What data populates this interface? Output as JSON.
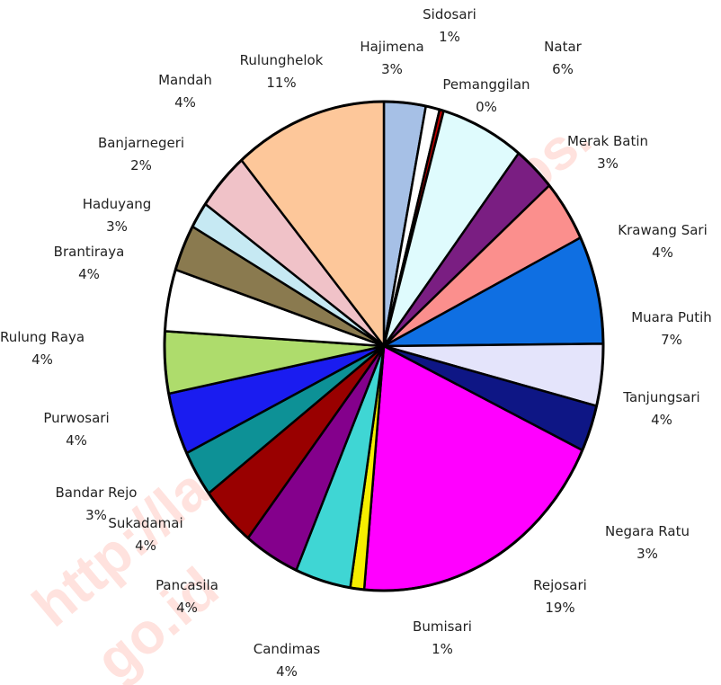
{
  "chart_data": {
    "type": "pie",
    "slices": [
      {
        "name": "Hajimena",
        "percent_label": "3%",
        "value": 3,
        "color": "#a6c0e6"
      },
      {
        "name": "Sidosari",
        "percent_label": "1%",
        "value": 1,
        "color": "#ffffff"
      },
      {
        "name": "Pemanggilan",
        "percent_label": "0%",
        "value": 0.3,
        "color": "#c00000"
      },
      {
        "name": "Natar",
        "percent_label": "6%",
        "value": 6,
        "color": "#dffbfd"
      },
      {
        "name": "Merak Batin",
        "percent_label": "3%",
        "value": 3,
        "color": "#7a1e82"
      },
      {
        "name": "Krawang Sari",
        "percent_label": "4%",
        "value": 4,
        "color": "#fb8f8d"
      },
      {
        "name": "Muara Putih",
        "percent_label": "7%",
        "value": 7,
        "color": "#0f6fe2"
      },
      {
        "name": "Tanjungsari",
        "percent_label": "4%",
        "value": 4,
        "color": "#e4e4fb"
      },
      {
        "name": "Negara Ratu",
        "percent_label": "3%",
        "value": 3,
        "color": "#0e1685"
      },
      {
        "name": "Rejosari",
        "percent_label": "19%",
        "value": 19,
        "color": "#ff00ff"
      },
      {
        "name": "Bumisari",
        "percent_label": "1%",
        "value": 1,
        "color": "#f6ee00"
      },
      {
        "name": "Candimas",
        "percent_label": "4%",
        "value": 4,
        "color": "#3fd6d4"
      },
      {
        "name": "Pancasila",
        "percent_label": "4%",
        "value": 4,
        "color": "#84008c"
      },
      {
        "name": "Sukadamai",
        "percent_label": "4%",
        "value": 4,
        "color": "#990000"
      },
      {
        "name": "Bandar Rejo",
        "percent_label": "3%",
        "value": 3,
        "color": "#0d9196"
      },
      {
        "name": "Purwosari",
        "percent_label": "4%",
        "value": 4,
        "color": "#1a1cf0"
      },
      {
        "name": "Rulung Raya",
        "percent_label": "4%",
        "value": 4,
        "color": "#aedc6c"
      },
      {
        "name": "Brantiraya",
        "percent_label": "4%",
        "value": 4,
        "color": "#ffffff"
      },
      {
        "name": "Haduyang",
        "percent_label": "3%",
        "value": 3,
        "color": "#8a7a4f"
      },
      {
        "name": "Banjarnegeri",
        "percent_label": "2%",
        "value": 1.7,
        "color": "#c6e9f3"
      },
      {
        "name": "Mandah",
        "percent_label": "4%",
        "value": 3.8,
        "color": "#f0c2c8"
      },
      {
        "name": "Rulunghelok",
        "percent_label": "11%",
        "value": 11,
        "color": "#fdc79a"
      }
    ],
    "title": "",
    "legend": "none"
  }
}
